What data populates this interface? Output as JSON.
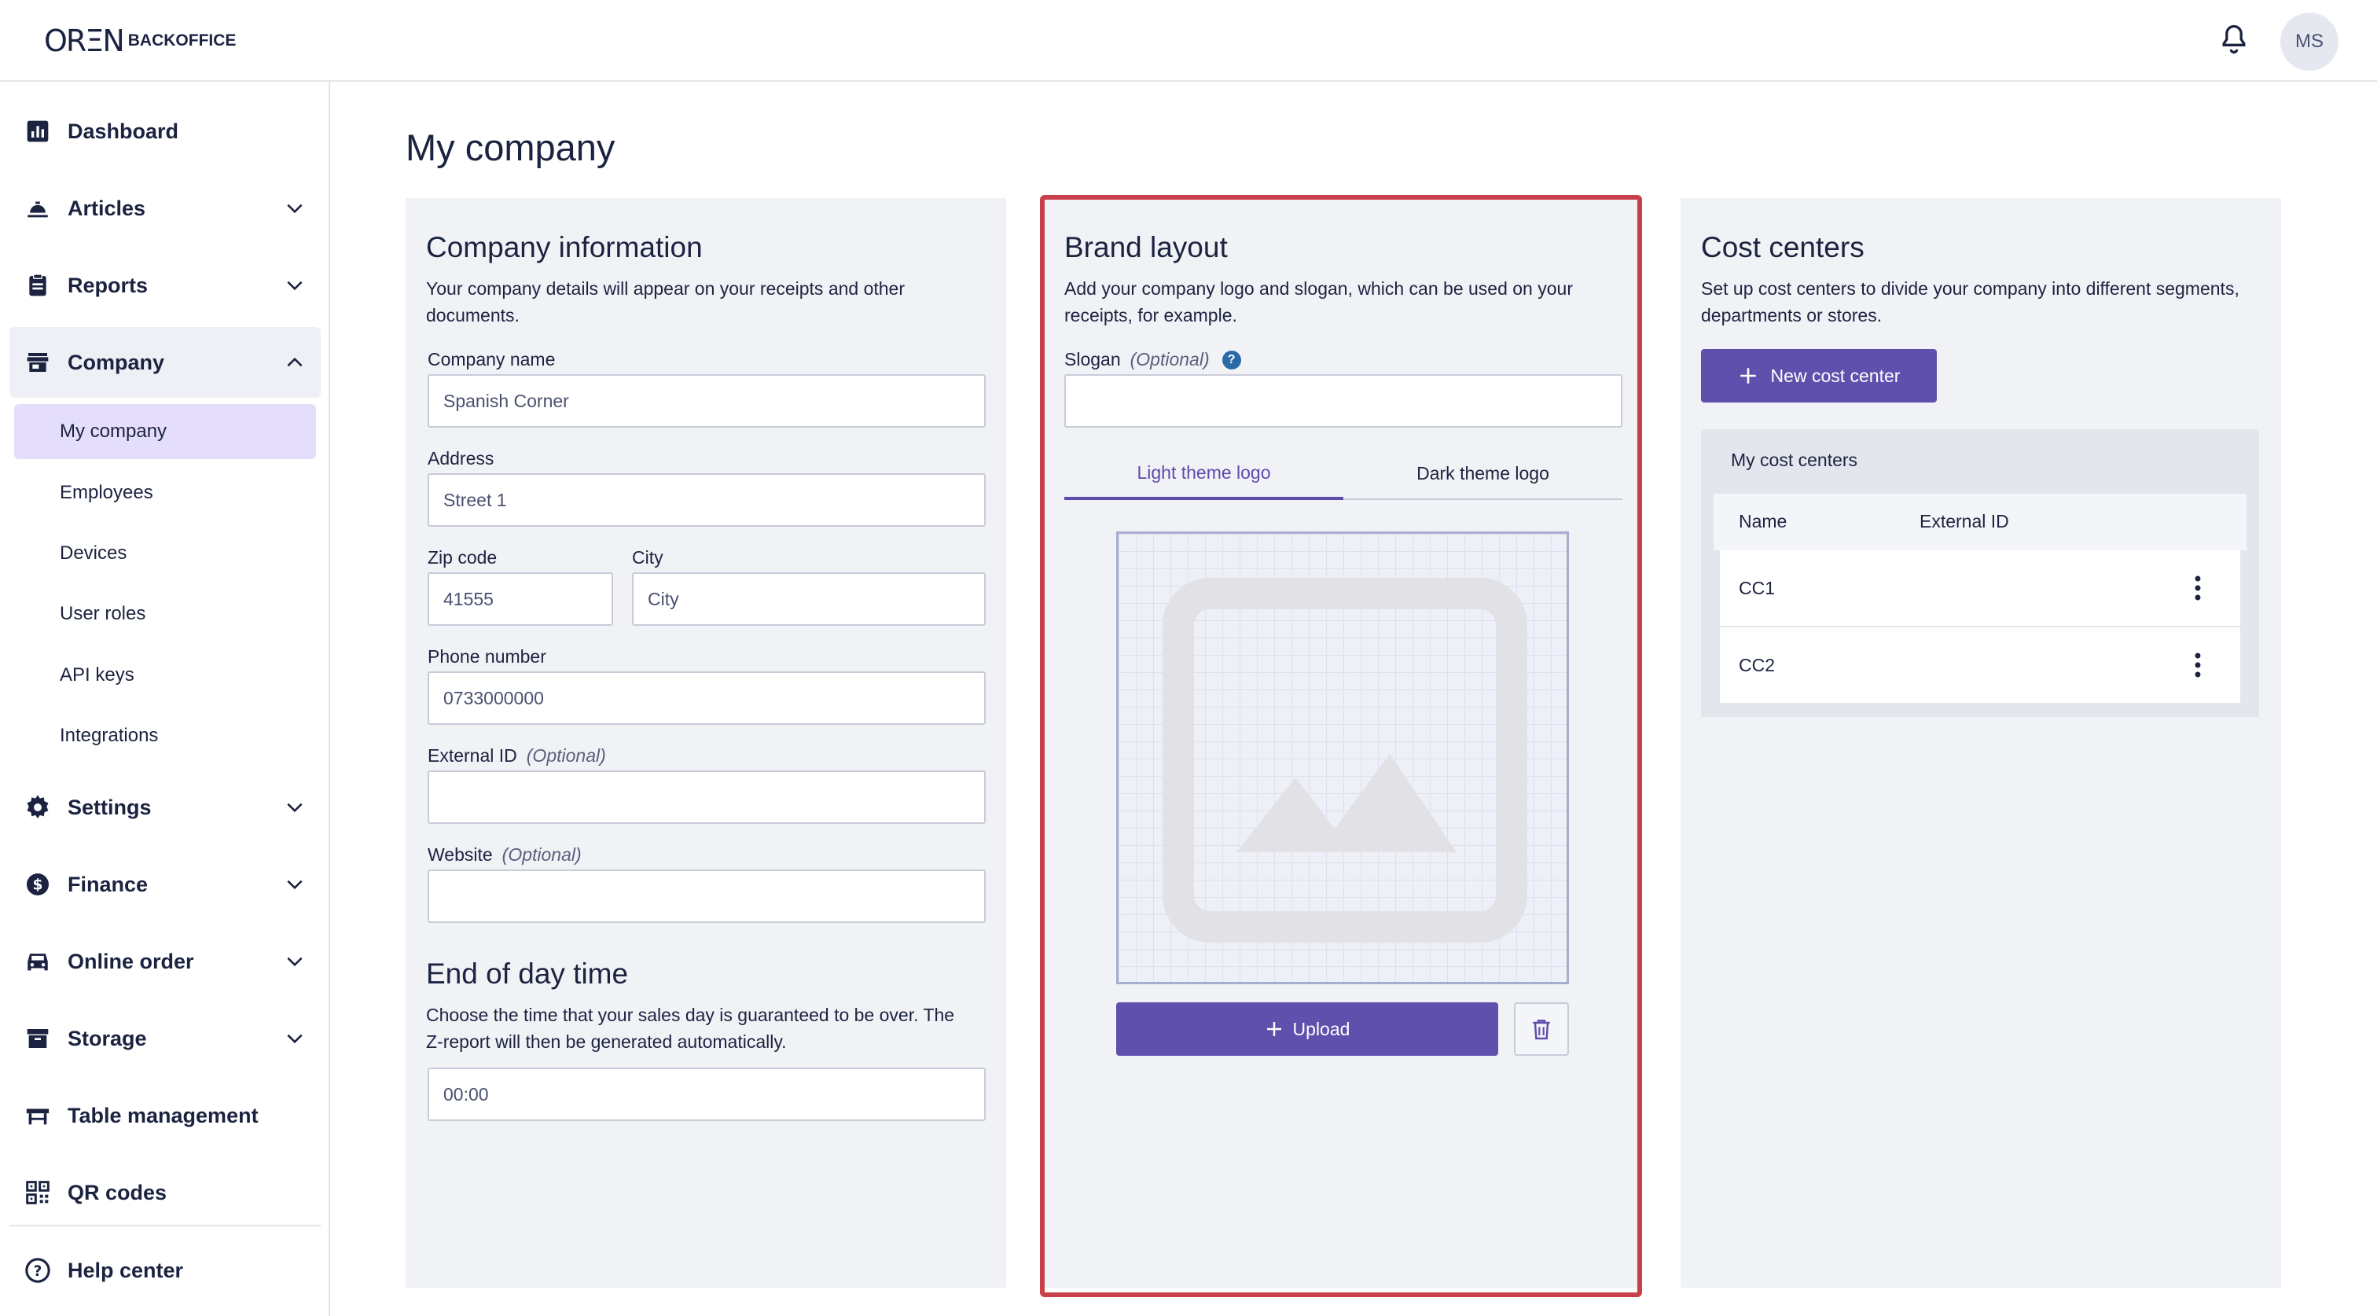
{
  "header": {
    "logo_mark": "ORΞN",
    "logo_text": "BACKOFFICE",
    "avatar_initials": "MS",
    "icons": {
      "notifications": "bell-icon"
    }
  },
  "sidebar": {
    "items": [
      {
        "label": "Dashboard",
        "icon": "dashboard-icon"
      },
      {
        "label": "Articles",
        "icon": "articles-icon"
      },
      {
        "label": "Reports",
        "icon": "reports-icon"
      },
      {
        "label": "Company",
        "icon": "store-icon",
        "expanded": true
      },
      {
        "label": "Settings",
        "icon": "gear-icon"
      },
      {
        "label": "Finance",
        "icon": "dollar-icon"
      },
      {
        "label": "Online order",
        "icon": "car-icon"
      },
      {
        "label": "Storage",
        "icon": "storage-icon"
      },
      {
        "label": "Table management",
        "icon": "table-icon"
      },
      {
        "label": "QR codes",
        "icon": "qr-icon"
      },
      {
        "label": "Help center",
        "icon": "help-icon"
      }
    ],
    "company_sub": [
      "My company",
      "Employees",
      "Devices",
      "User roles",
      "API keys",
      "Integrations"
    ],
    "active_sub": "My company"
  },
  "page": {
    "title": "My company"
  },
  "company_info": {
    "title": "Company information",
    "description": "Your company details will appear on your receipts and other documents.",
    "company_name_label": "Company name",
    "company_name_value": "Spanish Corner",
    "address_label": "Address",
    "address_value": "Street 1",
    "zip_label": "Zip code",
    "zip_value": "41555",
    "city_label": "City",
    "city_placeholder": "City",
    "phone_label": "Phone number",
    "phone_value": "0733000000",
    "external_id_label": "External ID",
    "website_label": "Website",
    "optional": "(Optional)"
  },
  "end_of_day": {
    "title": "End of day time",
    "description": "Choose the time that your sales day is guaranteed to be over. The Z-report will then be generated automatically.",
    "time_value": "00:00"
  },
  "brand_layout": {
    "title": "Brand layout",
    "description": "Add your company logo and slogan, which can be used on your receipts, for example.",
    "slogan_label": "Slogan",
    "optional": "(Optional)",
    "tabs": [
      "Light theme logo",
      "Dark theme logo"
    ],
    "active_tab": "Light theme logo",
    "upload_label": "Upload"
  },
  "cost_centers": {
    "title": "Cost centers",
    "description": "Set up cost centers to divide your company into different segments, departments or stores.",
    "new_button": "New cost center",
    "panel_title": "My cost centers",
    "columns": [
      "Name",
      "External ID"
    ],
    "rows": [
      {
        "name": "CC1",
        "external_id": ""
      },
      {
        "name": "CC2",
        "external_id": ""
      }
    ]
  },
  "colors": {
    "accent": "#6050ad",
    "highlight": "#c84049",
    "text": "#1c2340"
  }
}
